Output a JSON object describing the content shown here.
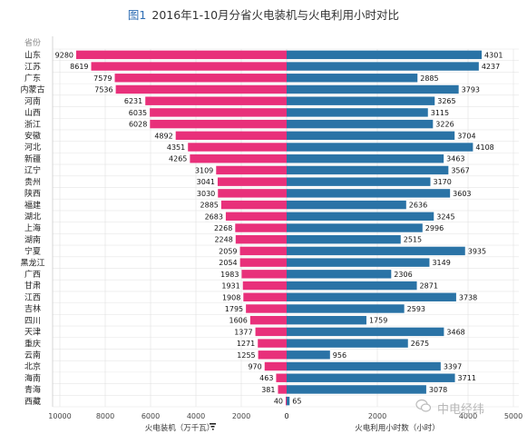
{
  "title": {
    "prefix": "图1",
    "text": "2016年1-10月分省火电装机与火电利用小时对比"
  },
  "watermark": "中电经纬",
  "chart_data": {
    "type": "bar",
    "title": "2016年1-10月分省火电装机与火电利用小时对比",
    "category_header": "省份",
    "categories": [
      "山东",
      "江苏",
      "广东",
      "内蒙古",
      "河南",
      "山西",
      "浙江",
      "安徽",
      "河北",
      "新疆",
      "辽宁",
      "贵州",
      "陕西",
      "福建",
      "湖北",
      "上海",
      "湖南",
      "宁夏",
      "黑龙江",
      "广西",
      "甘肃",
      "江西",
      "吉林",
      "四川",
      "天津",
      "重庆",
      "云南",
      "北京",
      "海南",
      "青海",
      "西藏"
    ],
    "series": [
      {
        "name": "火电装机（万千瓦）",
        "color": "#e8307a",
        "direction": "left",
        "xlabel": "火电装机（万千瓦）",
        "xlim": [
          0,
          10000
        ],
        "ticks": [
          10000,
          8000,
          6000,
          4000,
          2000,
          0
        ],
        "values": [
          9280,
          8619,
          7579,
          7536,
          6231,
          6035,
          6028,
          4892,
          4351,
          4265,
          3109,
          3041,
          3030,
          2885,
          2683,
          2268,
          2248,
          2059,
          2054,
          1983,
          1931,
          1908,
          1795,
          1606,
          1377,
          1271,
          1255,
          970,
          463,
          381,
          40
        ]
      },
      {
        "name": "火电利用小时数（小时）",
        "color": "#2a73a6",
        "direction": "right",
        "xlabel": "火电利用小时数（小时）",
        "xlim": [
          0,
          5000
        ],
        "ticks": [
          0,
          2000,
          4000,
          5000
        ],
        "values": [
          4301,
          4237,
          2885,
          3793,
          3265,
          3115,
          3226,
          3704,
          4108,
          3463,
          3567,
          3170,
          3603,
          2636,
          3245,
          2996,
          2515,
          3935,
          3149,
          2306,
          2871,
          3738,
          2593,
          1759,
          3468,
          2675,
          956,
          3397,
          3711,
          3078,
          65
        ]
      }
    ],
    "grid": true
  }
}
